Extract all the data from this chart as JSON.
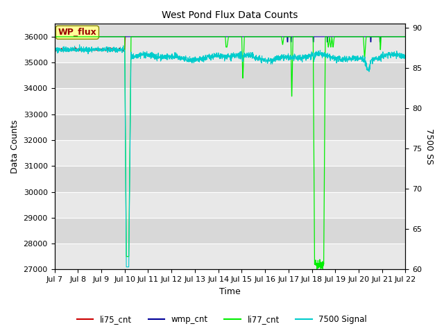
{
  "title": "West Pond Flux Data Counts",
  "xlabel": "Time",
  "ylabel_left": "Data Counts",
  "ylabel_right": "7500 SS",
  "ylim_left": [
    27000,
    36500
  ],
  "ylim_right": [
    60,
    90.5
  ],
  "yticks_left": [
    27000,
    28000,
    29000,
    30000,
    31000,
    32000,
    33000,
    34000,
    35000,
    36000
  ],
  "yticks_right": [
    60,
    65,
    70,
    75,
    80,
    85,
    90
  ],
  "xtick_labels": [
    "Jul 7",
    "Jul 8",
    "Jul 9",
    "Jul 10",
    "Jul 11",
    "Jul 12",
    "Jul 13",
    "Jul 14",
    "Jul 15",
    "Jul 16",
    "Jul 17",
    "Jul 18",
    "Jul 19",
    "Jul 20",
    "Jul 21",
    "Jul 22"
  ],
  "bg_color": "#dcdcdc",
  "bg_band_light": "#e8e8e8",
  "bg_band_dark": "#d0d0d0",
  "legend_labels": [
    "li75_cnt",
    "wmp_cnt",
    "li77_cnt",
    "7500 Signal"
  ],
  "legend_colors": [
    "#cc0000",
    "#000099",
    "#00ee00",
    "#00cccc"
  ],
  "wp_flux_box_color": "#ffff99",
  "wp_flux_text_color": "#990000",
  "li77_color": "#00ee00",
  "li75_color": "#cc0000",
  "wmp_color": "#000099",
  "signal_color": "#00cccc",
  "seed": 42
}
